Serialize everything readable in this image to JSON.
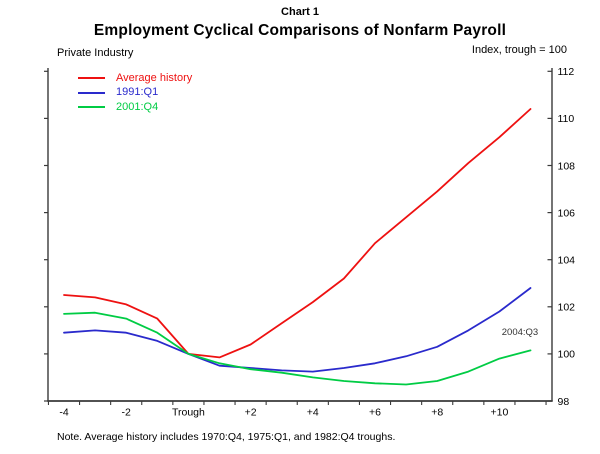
{
  "chart_data": {
    "type": "line",
    "supertitle": "Chart 1",
    "title": "Employment Cyclical Comparisons of Nonfarm Payroll",
    "left_label": "Private Industry",
    "right_label": "Index, trough = 100",
    "note": "Note. Average history includes 1970:Q4, 1975:Q1, and 1982:Q4 troughs.",
    "xlabel": "",
    "ylabel": "Index, trough = 100",
    "categories": [
      "-4",
      "-3",
      "-2",
      "-1",
      "Trough",
      "+1",
      "+2",
      "+3",
      "+4",
      "+5",
      "+6",
      "+7",
      "+8",
      "+9",
      "+10",
      "+11"
    ],
    "x_tick_labels": [
      "-4",
      "-2",
      "Trough",
      "+2",
      "+4",
      "+6",
      "+8",
      "+10"
    ],
    "x_tick_label_indices": [
      0,
      2,
      4,
      6,
      8,
      10,
      12,
      14
    ],
    "ylim": [
      98,
      112
    ],
    "y_ticks": [
      98,
      100,
      102,
      104,
      106,
      108,
      110,
      112
    ],
    "grid": false,
    "legend_position": "top-left",
    "annotation": {
      "text": "2004:Q3",
      "series": "2001:Q4"
    },
    "series": [
      {
        "name": "Average history",
        "color": "#ee1111",
        "values": [
          102.5,
          102.4,
          102.1,
          101.5,
          100.0,
          99.85,
          100.4,
          101.3,
          102.2,
          103.2,
          104.7,
          105.8,
          106.9,
          108.1,
          109.2,
          110.4
        ]
      },
      {
        "name": "1991:Q1",
        "color": "#2a2acc",
        "values": [
          100.9,
          101.0,
          100.9,
          100.55,
          100.0,
          99.5,
          99.4,
          99.3,
          99.25,
          99.4,
          99.6,
          99.9,
          100.3,
          101.0,
          101.8,
          102.8
        ]
      },
      {
        "name": "2001:Q4",
        "color": "#00cc44",
        "values": [
          101.7,
          101.75,
          101.5,
          100.9,
          100.0,
          99.6,
          99.35,
          99.2,
          99.0,
          98.85,
          98.75,
          98.7,
          98.85,
          99.25,
          99.8,
          100.15
        ]
      }
    ]
  }
}
